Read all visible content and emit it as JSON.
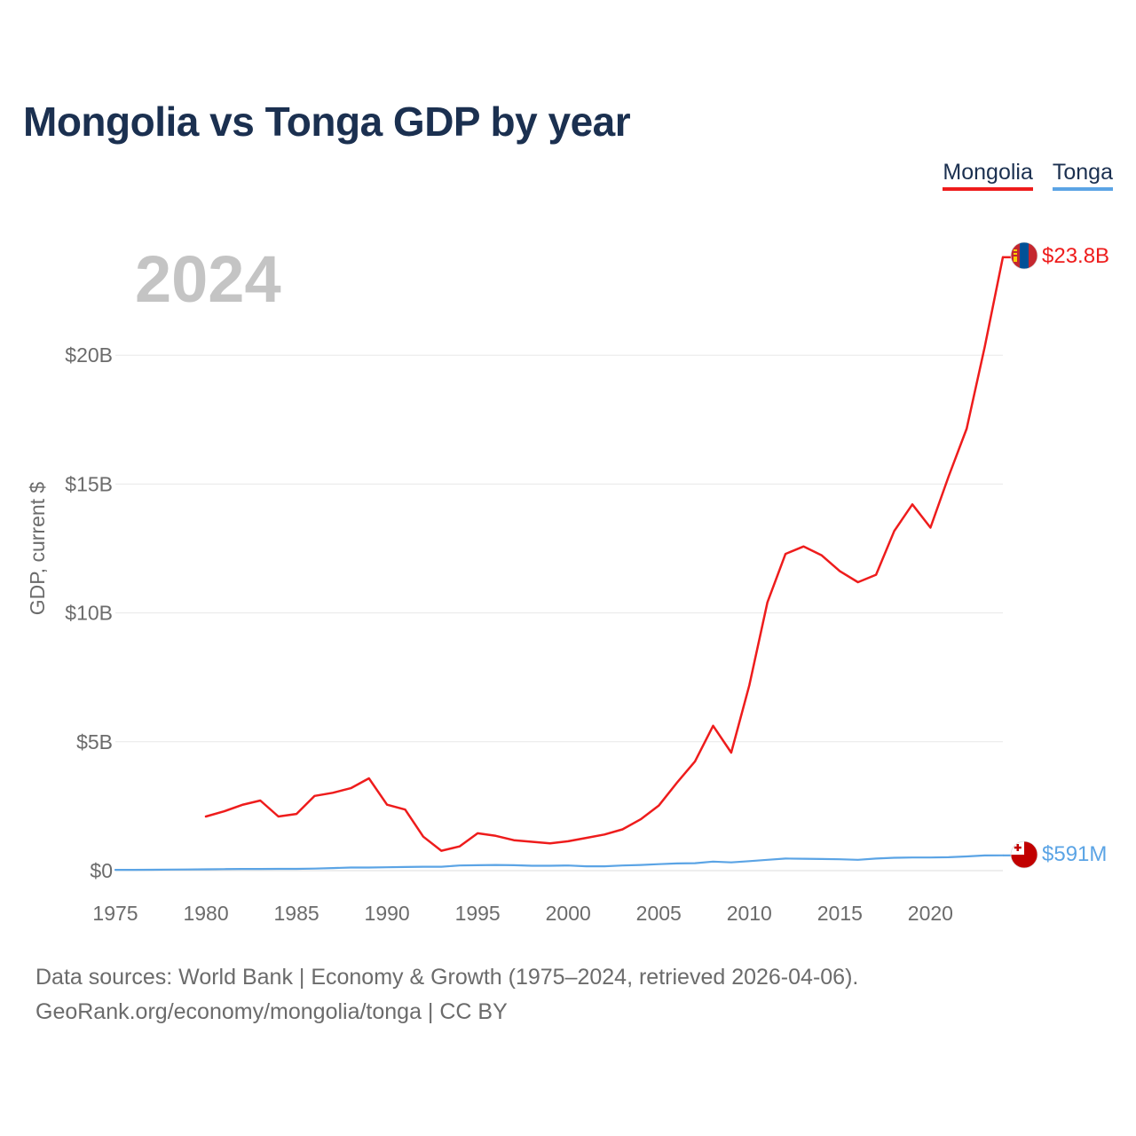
{
  "title": "Mongolia vs Tonga GDP by year",
  "source": {
    "line1": "Data sources: World Bank | Economy & Growth (1975–2024, retrieved 2026-04-06).",
    "line2": "GeoRank.org/economy/mongolia/tonga | CC BY"
  },
  "chart_data": {
    "type": "line",
    "title": "Mongolia vs Tonga GDP by year",
    "xlabel": "",
    "ylabel": "GDP, current $",
    "highlight_year": "2024",
    "xlim": [
      1975,
      2024
    ],
    "ylim": [
      0,
      25
    ],
    "y_unit": "billions USD",
    "x_ticks": [
      1975,
      1980,
      1985,
      1990,
      1995,
      2000,
      2005,
      2010,
      2015,
      2020
    ],
    "x_tick_labels": [
      "1975",
      "1980",
      "1985",
      "1990",
      "1995",
      "2000",
      "2005",
      "2010",
      "2015",
      "2020"
    ],
    "y_ticks": [
      0,
      5,
      10,
      15,
      20
    ],
    "y_tick_labels": [
      "$0",
      "$5B",
      "$10B",
      "$15B",
      "$20B"
    ],
    "legend_position": "top-right",
    "series": [
      {
        "name": "Mongolia",
        "color": "#ee1c1c",
        "end_label": "$23.8B",
        "flag": "mongolia-flag",
        "x": [
          1980,
          1981,
          1982,
          1983,
          1984,
          1985,
          1986,
          1987,
          1988,
          1989,
          1990,
          1991,
          1992,
          1993,
          1994,
          1995,
          1996,
          1997,
          1998,
          1999,
          2000,
          2001,
          2002,
          2003,
          2004,
          2005,
          2006,
          2007,
          2008,
          2009,
          2010,
          2011,
          2012,
          2013,
          2014,
          2015,
          2016,
          2017,
          2018,
          2019,
          2020,
          2021,
          2022,
          2023,
          2024
        ],
        "values": [
          2.1,
          2.3,
          2.55,
          2.72,
          2.1,
          2.2,
          2.9,
          3.02,
          3.2,
          3.58,
          2.56,
          2.37,
          1.32,
          0.77,
          0.94,
          1.45,
          1.35,
          1.18,
          1.12,
          1.06,
          1.14,
          1.27,
          1.4,
          1.6,
          1.99,
          2.52,
          3.41,
          4.24,
          5.62,
          4.58,
          7.19,
          10.41,
          12.29,
          12.58,
          12.23,
          11.62,
          11.19,
          11.48,
          13.18,
          14.21,
          13.31,
          15.29,
          17.15,
          20.33,
          23.8
        ]
      },
      {
        "name": "Tonga",
        "color": "#5ba4e5",
        "end_label": "$591M",
        "flag": "tonga-flag",
        "x": [
          1975,
          1976,
          1977,
          1978,
          1979,
          1980,
          1981,
          1982,
          1983,
          1984,
          1985,
          1986,
          1987,
          1988,
          1989,
          1990,
          1991,
          1992,
          1993,
          1994,
          1995,
          1996,
          1997,
          1998,
          1999,
          2000,
          2001,
          2002,
          2003,
          2004,
          2005,
          2006,
          2007,
          2008,
          2009,
          2010,
          2011,
          2012,
          2013,
          2014,
          2015,
          2016,
          2017,
          2018,
          2019,
          2020,
          2021,
          2022,
          2023,
          2024
        ],
        "values": [
          0.03,
          0.03,
          0.035,
          0.04,
          0.045,
          0.05,
          0.06,
          0.065,
          0.065,
          0.07,
          0.07,
          0.08,
          0.1,
          0.12,
          0.12,
          0.13,
          0.14,
          0.15,
          0.15,
          0.2,
          0.21,
          0.22,
          0.21,
          0.19,
          0.19,
          0.2,
          0.17,
          0.17,
          0.2,
          0.22,
          0.25,
          0.28,
          0.29,
          0.35,
          0.32,
          0.37,
          0.42,
          0.47,
          0.46,
          0.45,
          0.44,
          0.42,
          0.47,
          0.5,
          0.51,
          0.51,
          0.52,
          0.55,
          0.59,
          0.591
        ]
      }
    ]
  }
}
